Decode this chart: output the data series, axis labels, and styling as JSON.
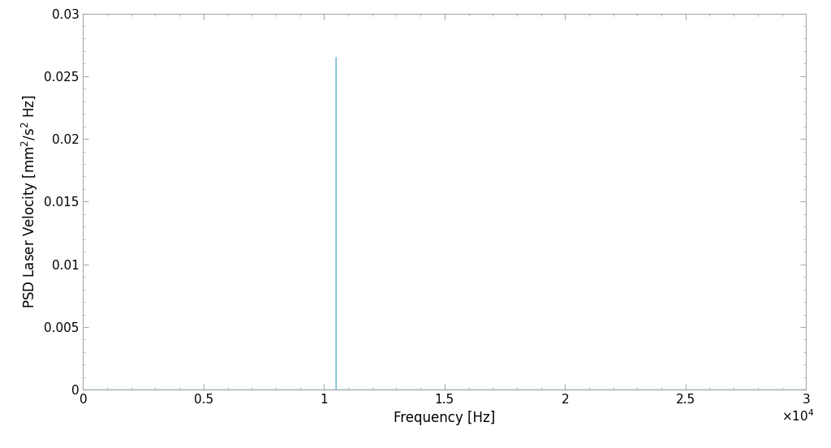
{
  "xlabel": "Frequency [Hz]",
  "ylabel": "PSD Laser Velocity [mm$^2$/s$^2$ Hz]",
  "xlim": [
    0,
    30000
  ],
  "ylim": [
    0,
    0.03
  ],
  "xticks": [
    0,
    5000,
    10000,
    15000,
    20000,
    25000,
    30000
  ],
  "xtick_labels": [
    "0",
    "0.5",
    "1",
    "1.5",
    "2",
    "2.5",
    "3"
  ],
  "yticks": [
    0,
    0.005,
    0.01,
    0.015,
    0.02,
    0.025,
    0.03
  ],
  "ytick_labels": [
    "0",
    "0.005",
    "0.01",
    "0.015",
    "0.02",
    "0.025",
    "0.03"
  ],
  "spike_freq": 10500,
  "spike_amplitude": 0.0265,
  "line_color": "#77bece",
  "background_color": "#ffffff",
  "spine_color": "#aaaaaa",
  "grid": false,
  "linewidth": 0.8,
  "xlabel_fontsize": 12,
  "ylabel_fontsize": 12,
  "tick_fontsize": 11,
  "fig_width": 10.24,
  "fig_height": 5.52,
  "dpi": 100
}
